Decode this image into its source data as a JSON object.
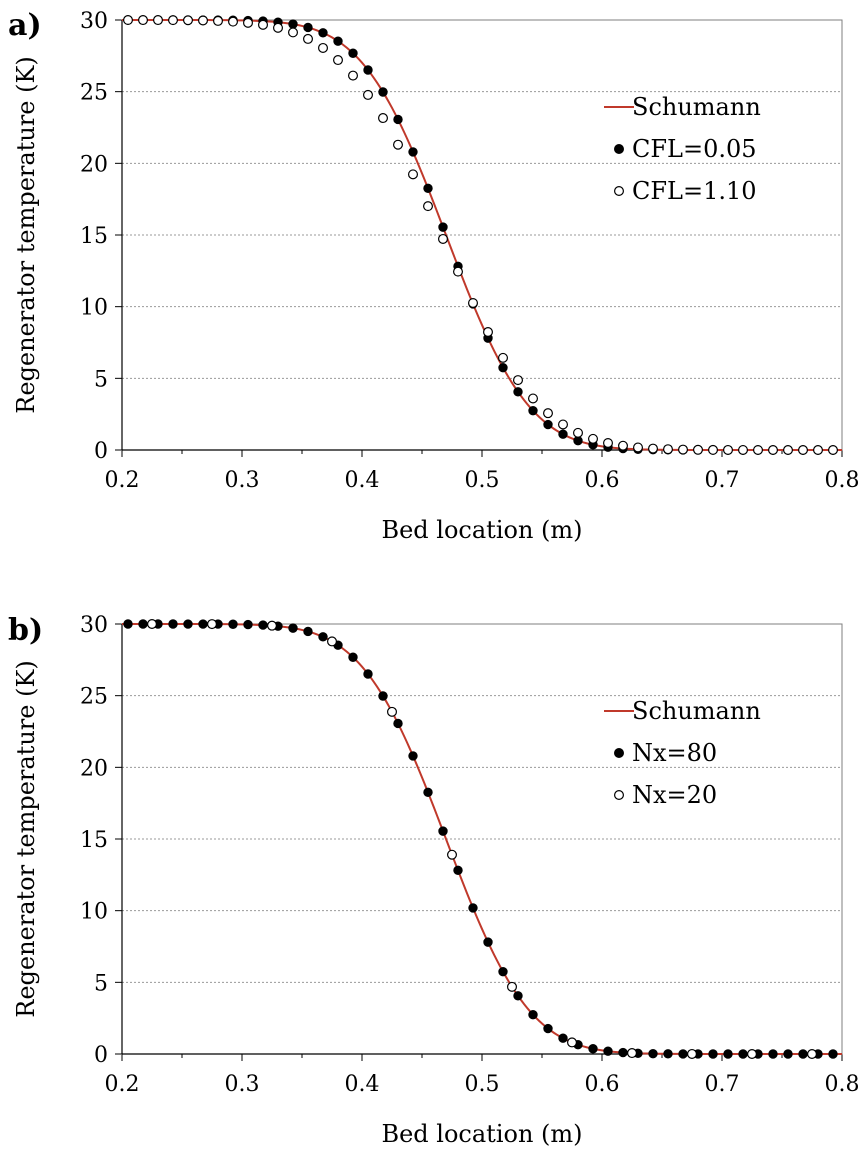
{
  "colors": {
    "analytic_line": "#c0392b",
    "grid": "#9a9a9a",
    "axis": "#000000"
  },
  "chart_data": [
    {
      "type": "line",
      "panel_label": "a)",
      "xlabel": "Bed location (m)",
      "ylabel": "Regenerator temperature (K)",
      "xlim": [
        0.2,
        0.8
      ],
      "ylim": [
        0,
        30
      ],
      "xticks": [
        "0.2",
        "0.3",
        "0.4",
        "0.5",
        "0.6",
        "0.7",
        "0.8"
      ],
      "yticks": [
        "0",
        "5",
        "10",
        "15",
        "20",
        "25",
        "30"
      ],
      "grid": "horizontal dotted",
      "legend_position": "right, upper-middle",
      "series": [
        {
          "name": "Schumann",
          "style": "line",
          "function": "schumann_step",
          "center": 0.47,
          "width": 0.077
        },
        {
          "name": "CFL=0.05",
          "style": "filled-circle",
          "x_start": 0.205,
          "x_step": 0.0125,
          "count": 48,
          "center": 0.47,
          "width": 0.077
        },
        {
          "name": "CFL=1.10",
          "style": "open-circle",
          "x_start": 0.205,
          "x_step": 0.0125,
          "count": 48,
          "center": 0.466,
          "width": 0.092
        }
      ]
    },
    {
      "type": "line",
      "panel_label": "b)",
      "xlabel": "Bed location (m)",
      "ylabel": "Regenerator temperature (K)",
      "xlim": [
        0.2,
        0.8
      ],
      "ylim": [
        0,
        30
      ],
      "xticks": [
        "0.2",
        "0.3",
        "0.4",
        "0.5",
        "0.6",
        "0.7",
        "0.8"
      ],
      "yticks": [
        "0",
        "5",
        "10",
        "15",
        "20",
        "25",
        "30"
      ],
      "grid": "horizontal dotted",
      "legend_position": "right, upper-middle",
      "series": [
        {
          "name": "Schumann",
          "style": "line",
          "function": "schumann_step",
          "center": 0.47,
          "width": 0.077
        },
        {
          "name": "Nx=80",
          "style": "filled-circle",
          "x_start": 0.205,
          "x_step": 0.0125,
          "count": 48,
          "center": 0.47,
          "width": 0.077
        },
        {
          "name": "Nx=20",
          "style": "open-circle",
          "x_start": 0.225,
          "x_step": 0.05,
          "count": 12,
          "center": 0.47,
          "width": 0.077
        }
      ]
    }
  ]
}
